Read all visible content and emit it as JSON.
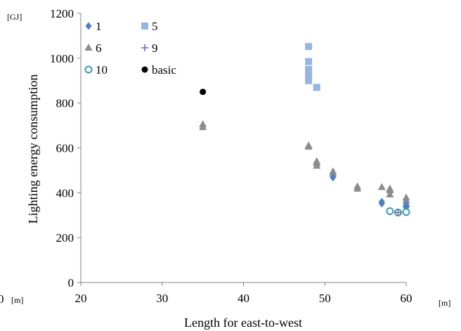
{
  "chart_data": {
    "type": "scatter",
    "title": "",
    "xlabel": "Length for east-to-west",
    "ylabel": "Lighting energy consumption",
    "x_unit": "[m]",
    "x_origin_unit": "[m]",
    "y_unit": "[GJ]",
    "x_origin_fragment": "0",
    "xlim": [
      20,
      60
    ],
    "ylim": [
      0,
      1200
    ],
    "xticks": [
      20,
      30,
      40,
      50,
      60
    ],
    "yticks": [
      0,
      200,
      400,
      600,
      800,
      1000,
      1200
    ],
    "grid": false,
    "legend_position": "top-left",
    "series": [
      {
        "name": "1",
        "marker": "diamond",
        "color": "#4a7fc9",
        "points": [
          [
            51,
            468
          ],
          [
            57,
            352
          ],
          [
            57,
            360
          ],
          [
            59,
            312
          ],
          [
            60,
            335
          ],
          [
            60,
            345
          ]
        ]
      },
      {
        "name": "5",
        "marker": "square",
        "color": "#95b6e0",
        "points": [
          [
            48,
            1052
          ],
          [
            48,
            985
          ],
          [
            48,
            950
          ],
          [
            48,
            920
          ],
          [
            48,
            900
          ],
          [
            49,
            870
          ]
        ]
      },
      {
        "name": "6",
        "marker": "triangle",
        "color": "#8c8c8c",
        "points": [
          [
            35,
            705
          ],
          [
            35,
            692
          ],
          [
            48,
            610
          ],
          [
            48,
            605
          ],
          [
            49,
            540
          ],
          [
            49,
            532
          ],
          [
            49,
            520
          ],
          [
            51,
            495
          ],
          [
            51,
            485
          ],
          [
            54,
            428
          ],
          [
            54,
            418
          ],
          [
            57,
            425
          ],
          [
            58,
            418
          ],
          [
            58,
            410
          ],
          [
            58,
            392
          ],
          [
            60,
            378
          ],
          [
            60,
            365
          ],
          [
            60,
            350
          ]
        ]
      },
      {
        "name": "9",
        "marker": "plus",
        "color": "#7a5ea8",
        "points": [
          [
            59,
            312
          ]
        ]
      },
      {
        "name": "10",
        "marker": "circle-open",
        "color": "#3a9cb3",
        "points": [
          [
            58,
            318
          ],
          [
            59,
            312
          ],
          [
            60,
            314
          ]
        ]
      },
      {
        "name": "basic",
        "marker": "circle-filled",
        "color": "#000000",
        "points": [
          [
            35,
            850
          ]
        ]
      }
    ]
  }
}
